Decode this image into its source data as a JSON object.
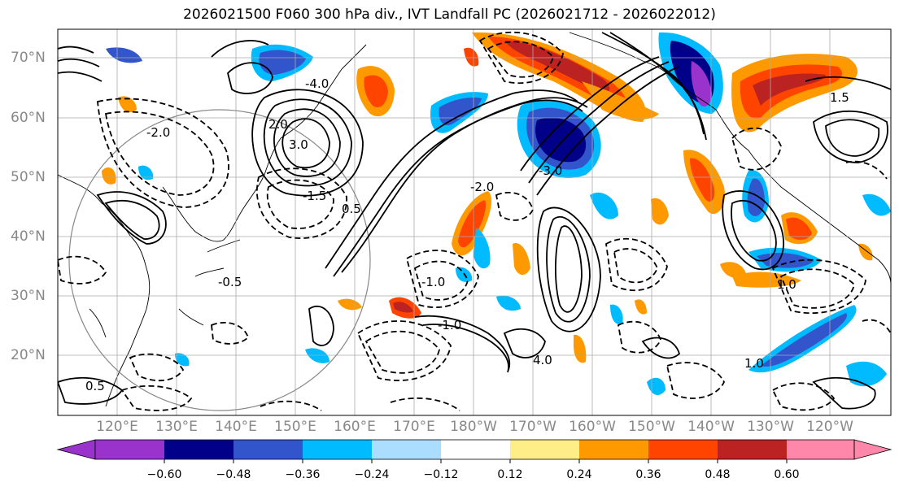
{
  "title": "2026021500 F060 300 hPa div., IVT Landfall PC (2026021712 - 2026022012)",
  "axes": {
    "lat_labels": [
      "70°N",
      "60°N",
      "50°N",
      "40°N",
      "30°N",
      "20°N"
    ],
    "lon_labels": [
      "120°E",
      "130°E",
      "140°E",
      "150°E",
      "160°E",
      "170°E",
      "180°W",
      "170°W",
      "160°W",
      "150°W",
      "140°W",
      "130°W",
      "120°W"
    ]
  },
  "colorbar": {
    "ticks": [
      "−0.60",
      "−0.48",
      "−0.36",
      "−0.24",
      "−0.12",
      "0.12",
      "0.24",
      "0.36",
      "0.48",
      "0.60"
    ],
    "colors": [
      "#9933cc",
      "#000088",
      "#3355cc",
      "#00bbff",
      "#aaddff",
      "#ffffff",
      "#ffee88",
      "#ff9900",
      "#ff4400",
      "#bb2222",
      "#ff88aa"
    ],
    "extend": "both"
  },
  "contour_labels": [
    "3.0",
    "2.0",
    "1.5",
    "0.5",
    "-4.0",
    "-2.0",
    "-0.5",
    "-1.5",
    "-1.0",
    "1.0",
    "-3.0",
    "4.0",
    "-1.0",
    "-2.0",
    "1.0",
    "0.5"
  ],
  "colors": {
    "positive_fill": "#ff4400",
    "negative_fill": "#000088",
    "contour": "#000000",
    "grid": "#aaaaaa",
    "axis_text": "#888888"
  }
}
